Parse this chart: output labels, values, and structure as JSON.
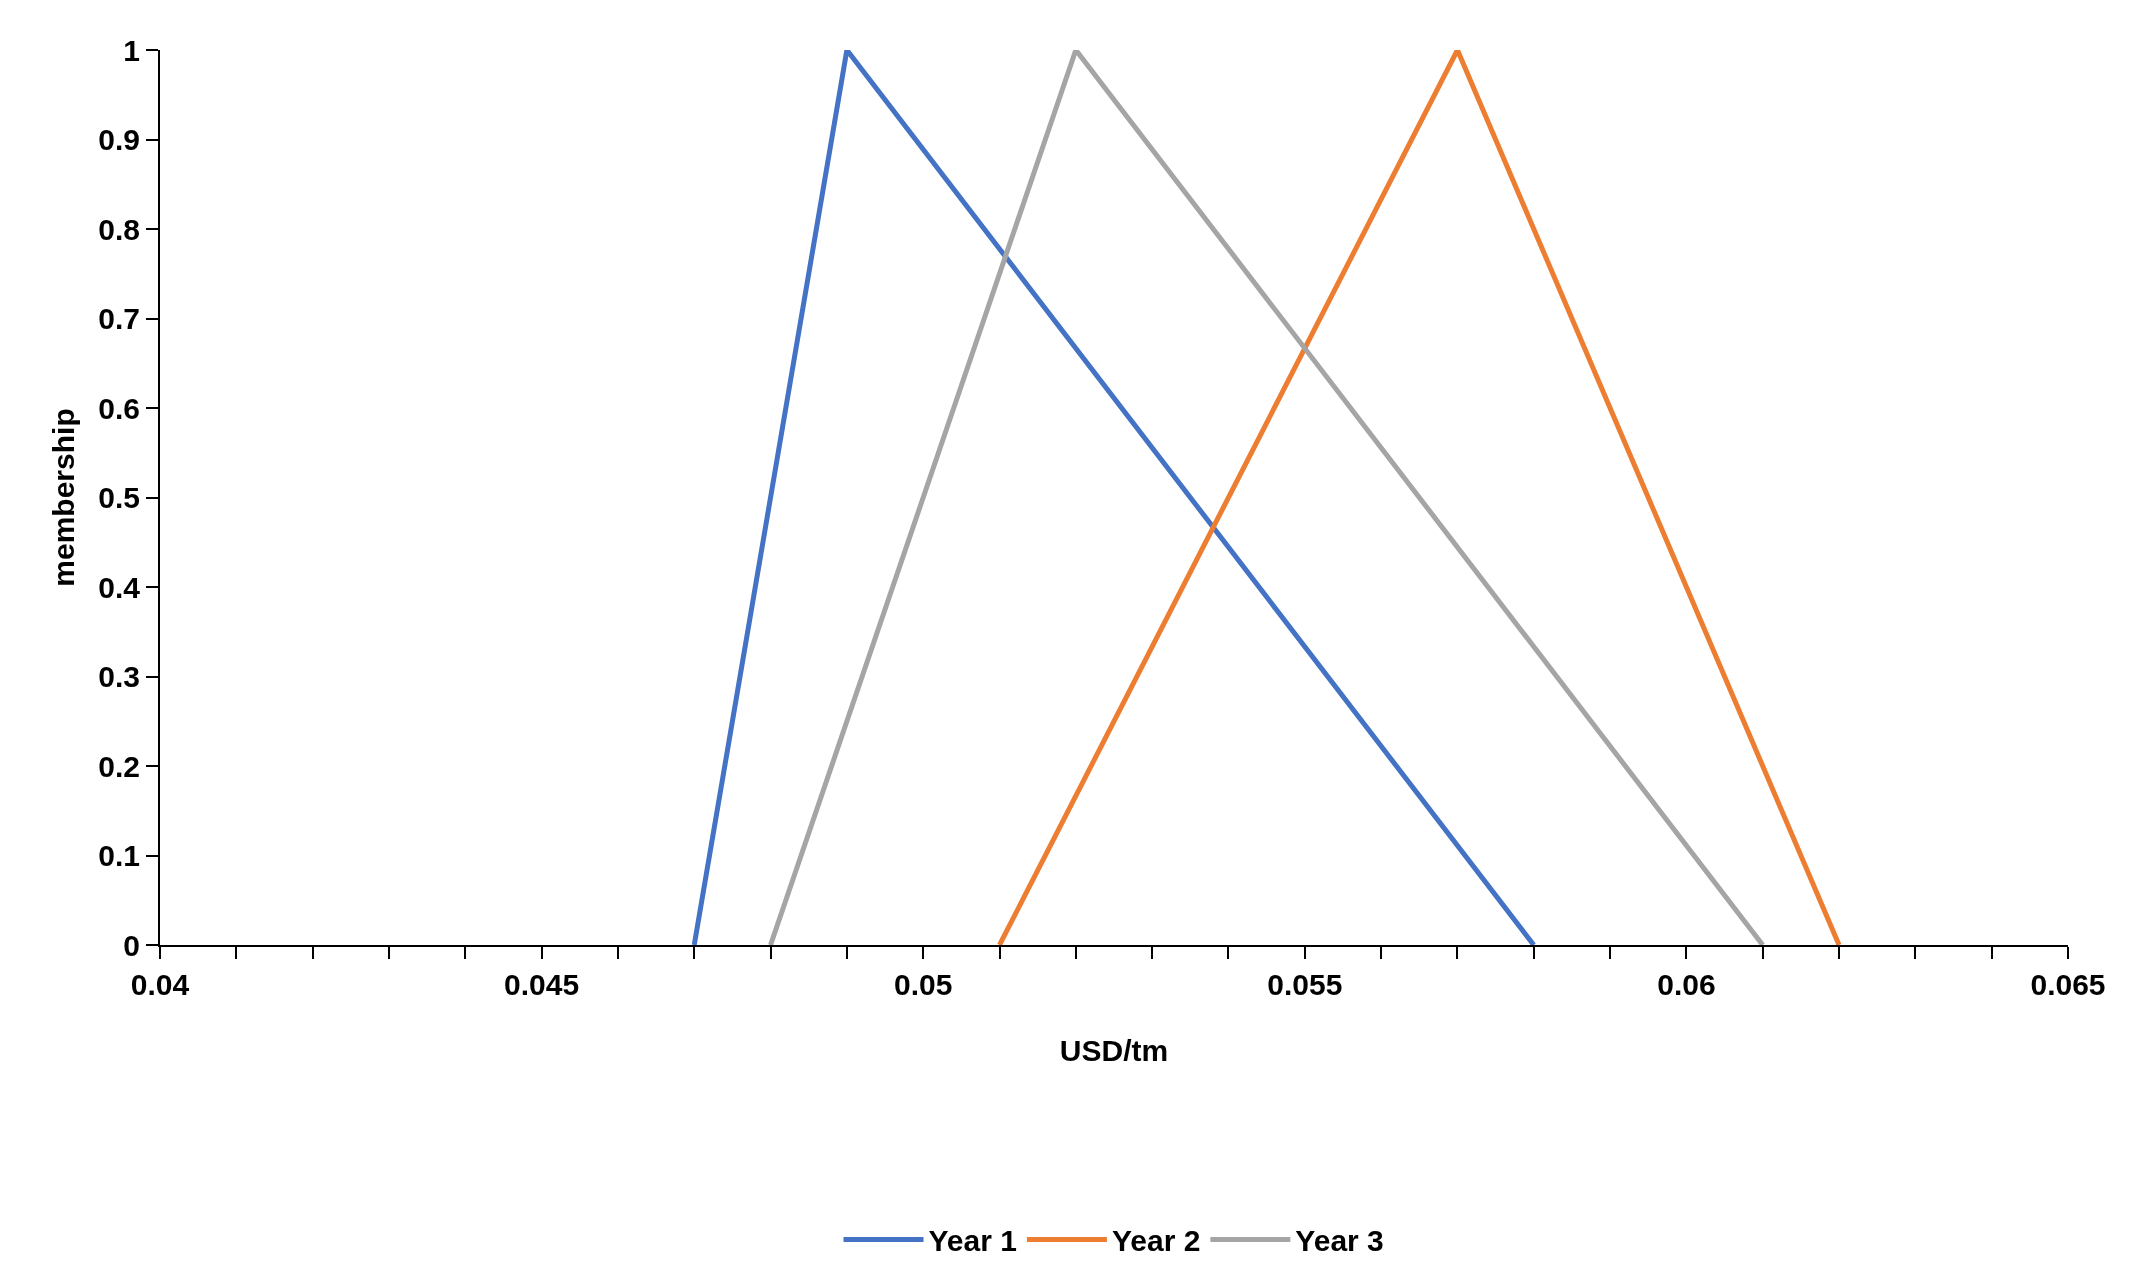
{
  "chart_data": {
    "type": "line",
    "xlabel": "USD/tm",
    "ylabel": "membership",
    "series": [
      {
        "name": "Year 1",
        "color": "#4472c4",
        "x": [
          0.047,
          0.049,
          0.058
        ],
        "values": [
          0,
          1,
          0
        ]
      },
      {
        "name": "Year 2",
        "color": "#ed7d31",
        "x": [
          0.051,
          0.057,
          0.062
        ],
        "values": [
          0,
          1,
          0
        ]
      },
      {
        "name": "Year 3",
        "color": "#a5a5a5",
        "x": [
          0.048,
          0.052,
          0.061
        ],
        "values": [
          0,
          1,
          0
        ]
      }
    ],
    "xlim": [
      0.04,
      0.065
    ],
    "xticks": [
      0.04,
      {
        "value": 0.041,
        "label": null
      },
      {
        "value": 0.042,
        "label": null
      },
      {
        "value": 0.043,
        "label": null
      },
      {
        "value": 0.044,
        "label": null
      },
      0.045,
      {
        "value": 0.046,
        "label": null
      },
      {
        "value": 0.047,
        "label": null
      },
      {
        "value": 0.048,
        "label": null
      },
      {
        "value": 0.049,
        "label": null
      },
      0.05,
      {
        "value": 0.051,
        "label": null
      },
      {
        "value": 0.052,
        "label": null
      },
      {
        "value": 0.053,
        "label": null
      },
      {
        "value": 0.054,
        "label": null
      },
      0.055,
      {
        "value": 0.056,
        "label": null
      },
      {
        "value": 0.057,
        "label": null
      },
      {
        "value": 0.058,
        "label": null
      },
      {
        "value": 0.059,
        "label": null
      },
      0.06,
      {
        "value": 0.061,
        "label": null
      },
      {
        "value": 0.062,
        "label": null
      },
      {
        "value": 0.063,
        "label": null
      },
      {
        "value": 0.064,
        "label": null
      },
      0.065
    ],
    "ylim": [
      0,
      1
    ],
    "yticks": [
      0,
      0.1,
      0.2,
      0.3,
      0.4,
      0.5,
      0.6,
      0.7,
      0.8,
      0.9,
      1
    ],
    "legend": "bottom",
    "marker": "none",
    "line_style": "solid"
  }
}
